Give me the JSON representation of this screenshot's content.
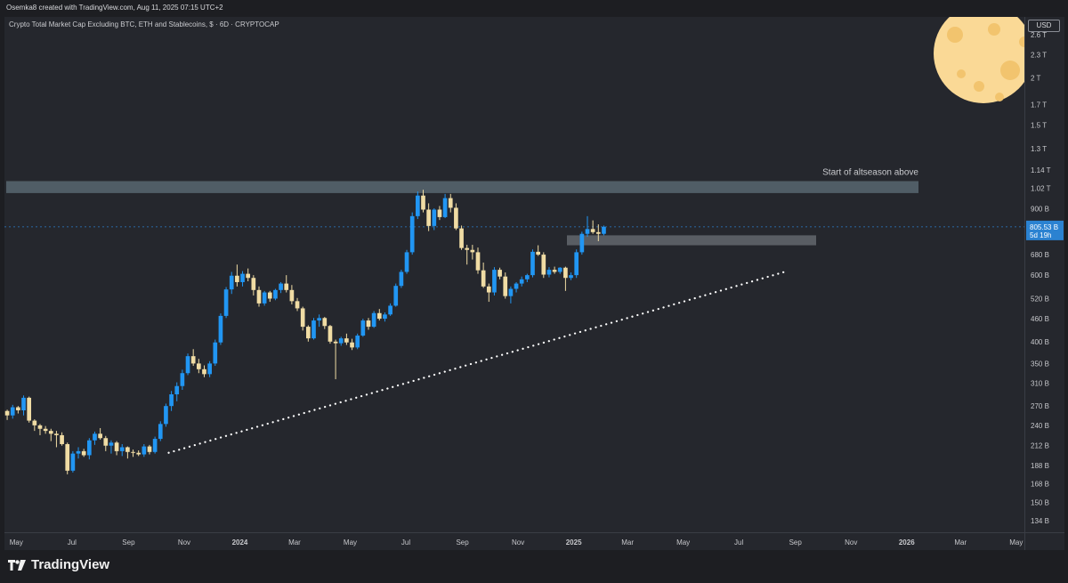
{
  "header": {
    "credit": "Osemka8 created with TradingView.com, Aug 11, 2025 07:15 UTC+2",
    "symbol_title": "Crypto Total Market Cap Excluding BTC, ETH and Stablecoins, $ · 6D · CRYPTOCAP"
  },
  "price_axis": {
    "currency": "USD",
    "labels": [
      "2.6 T",
      "2.3 T",
      "2 T",
      "1.7 T",
      "1.5 T",
      "1.3 T",
      "1.14 T",
      "1.02 T",
      "900 B",
      "805.53 B",
      "680 B",
      "600 B",
      "520 B",
      "460 B",
      "400 B",
      "350 B",
      "310 B",
      "270 B",
      "240 B",
      "212 B",
      "188 B",
      "168 B",
      "150 B",
      "134 B"
    ],
    "last_price": "805.53 B",
    "countdown": "5d 19h"
  },
  "time_axis": {
    "labels": [
      "May",
      "Jul",
      "Sep",
      "Nov",
      "2024",
      "Mar",
      "May",
      "Jul",
      "Sep",
      "Nov",
      "2025",
      "Mar",
      "May",
      "Jul",
      "Sep",
      "Nov",
      "2026",
      "Mar",
      "May"
    ]
  },
  "annotation": "Start of altseason above",
  "footer": {
    "brand": "TradingView"
  },
  "colors": {
    "up": "#2196f3",
    "down": "#f0dca4",
    "background": "#25272d",
    "zone": "#5b6c74",
    "trendline": "#ffffff",
    "moon": "#fad996"
  },
  "chart_data": {
    "type": "candlestick",
    "title": "Crypto Total Market Cap Excluding BTC, ETH and Stablecoins, $ · 6D · CRYPTOCAP",
    "timeframe": "6D",
    "ylabel": "USD",
    "yscale": "log",
    "ylim": [
      125,
      2900
    ],
    "unit": "billion USD",
    "x_range": [
      "2023-04-18",
      "2026-05-10"
    ],
    "last_price": 805.53,
    "candles": [
      [
        262,
        264,
        248,
        255
      ],
      [
        255,
        272,
        250,
        268
      ],
      [
        268,
        270,
        258,
        263
      ],
      [
        263,
        288,
        255,
        284
      ],
      [
        284,
        286,
        244,
        247
      ],
      [
        247,
        249,
        232,
        240
      ],
      [
        240,
        242,
        226,
        235
      ],
      [
        235,
        239,
        228,
        232
      ],
      [
        232,
        235,
        218,
        228
      ],
      [
        228,
        232,
        210,
        226
      ],
      [
        226,
        230,
        212,
        214
      ],
      [
        214,
        216,
        178,
        182
      ],
      [
        182,
        205,
        180,
        202
      ],
      [
        202,
        210,
        196,
        205
      ],
      [
        205,
        208,
        198,
        200
      ],
      [
        200,
        222,
        195,
        219
      ],
      [
        219,
        231,
        213,
        228
      ],
      [
        228,
        236,
        220,
        222
      ],
      [
        222,
        225,
        205,
        212
      ],
      [
        212,
        219,
        202,
        216
      ],
      [
        216,
        218,
        200,
        205
      ],
      [
        205,
        214,
        199,
        210
      ],
      [
        210,
        211,
        196,
        204
      ],
      [
        204,
        207,
        198,
        203
      ],
      [
        203,
        206,
        199,
        201
      ],
      [
        201,
        214,
        198,
        211
      ],
      [
        211,
        213,
        201,
        204
      ],
      [
        204,
        224,
        202,
        221
      ],
      [
        221,
        246,
        218,
        242
      ],
      [
        242,
        274,
        238,
        270
      ],
      [
        270,
        296,
        262,
        290
      ],
      [
        290,
        312,
        278,
        305
      ],
      [
        305,
        337,
        298,
        330
      ],
      [
        330,
        372,
        326,
        366
      ],
      [
        366,
        382,
        345,
        350
      ],
      [
        350,
        360,
        330,
        338
      ],
      [
        338,
        346,
        322,
        328
      ],
      [
        328,
        355,
        322,
        350
      ],
      [
        350,
        405,
        345,
        398
      ],
      [
        398,
        475,
        392,
        468
      ],
      [
        468,
        558,
        462,
        550
      ],
      [
        550,
        612,
        535,
        598
      ],
      [
        598,
        640,
        560,
        575
      ],
      [
        575,
        615,
        560,
        605
      ],
      [
        605,
        625,
        578,
        590
      ],
      [
        590,
        600,
        530,
        548
      ],
      [
        548,
        560,
        495,
        505
      ],
      [
        505,
        545,
        498,
        540
      ],
      [
        540,
        545,
        510,
        520
      ],
      [
        520,
        552,
        515,
        548
      ],
      [
        548,
        575,
        538,
        570
      ],
      [
        570,
        600,
        540,
        548
      ],
      [
        548,
        565,
        502,
        512
      ],
      [
        512,
        522,
        482,
        490
      ],
      [
        490,
        495,
        428,
        438
      ],
      [
        438,
        442,
        400,
        408
      ],
      [
        408,
        462,
        405,
        455
      ],
      [
        455,
        472,
        438,
        462
      ],
      [
        462,
        465,
        432,
        440
      ],
      [
        440,
        443,
        395,
        400
      ],
      [
        400,
        405,
        318,
        396
      ],
      [
        396,
        412,
        390,
        408
      ],
      [
        408,
        420,
        392,
        398
      ],
      [
        398,
        407,
        380,
        386
      ],
      [
        386,
        420,
        382,
        415
      ],
      [
        415,
        460,
        412,
        455
      ],
      [
        455,
        462,
        430,
        438
      ],
      [
        438,
        482,
        435,
        476
      ],
      [
        476,
        488,
        455,
        460
      ],
      [
        460,
        478,
        452,
        472
      ],
      [
        472,
        505,
        468,
        498
      ],
      [
        498,
        570,
        495,
        562
      ],
      [
        562,
        620,
        555,
        612
      ],
      [
        612,
        700,
        605,
        690
      ],
      [
        690,
        880,
        680,
        860
      ],
      [
        860,
        1000,
        845,
        975
      ],
      [
        975,
        1010,
        880,
        895
      ],
      [
        895,
        930,
        785,
        810
      ],
      [
        810,
        902,
        790,
        895
      ],
      [
        895,
        915,
        840,
        855
      ],
      [
        855,
        985,
        850,
        960
      ],
      [
        960,
        985,
        880,
        905
      ],
      [
        905,
        930,
        790,
        798
      ],
      [
        798,
        812,
        700,
        708
      ],
      [
        708,
        722,
        640,
        700
      ],
      [
        700,
        722,
        660,
        690
      ],
      [
        690,
        710,
        605,
        618
      ],
      [
        618,
        648,
        555,
        560
      ],
      [
        560,
        570,
        510,
        540
      ],
      [
        540,
        630,
        530,
        620
      ],
      [
        620,
        628,
        585,
        595
      ],
      [
        595,
        610,
        520,
        528
      ],
      [
        528,
        560,
        505,
        552
      ],
      [
        552,
        575,
        540,
        570
      ],
      [
        570,
        595,
        560,
        585
      ],
      [
        585,
        605,
        575,
        600
      ],
      [
        600,
        702,
        592,
        692
      ],
      [
        692,
        720,
        675,
        680
      ],
      [
        680,
        690,
        590,
        602
      ],
      [
        602,
        630,
        592,
        620
      ],
      [
        620,
        632,
        605,
        612
      ],
      [
        612,
        630,
        605,
        628
      ],
      [
        628,
        632,
        545,
        590
      ],
      [
        590,
        610,
        582,
        600
      ],
      [
        600,
        702,
        590,
        690
      ],
      [
        690,
        782,
        680,
        772
      ],
      [
        772,
        860,
        758,
        795
      ],
      [
        795,
        838,
        772,
        780
      ],
      [
        780,
        818,
        738,
        772
      ],
      [
        772,
        812,
        765,
        806
      ]
    ],
    "resistance_zone": {
      "low": 990,
      "high": 1065,
      "label": "Start of altseason above"
    },
    "support_zone": {
      "low": 720,
      "high": 765
    },
    "trendline": {
      "from": {
        "date": "2023-10-15",
        "value": 203
      },
      "to": {
        "date": "2025-08-20",
        "value": 612
      },
      "style": "dotted"
    }
  }
}
